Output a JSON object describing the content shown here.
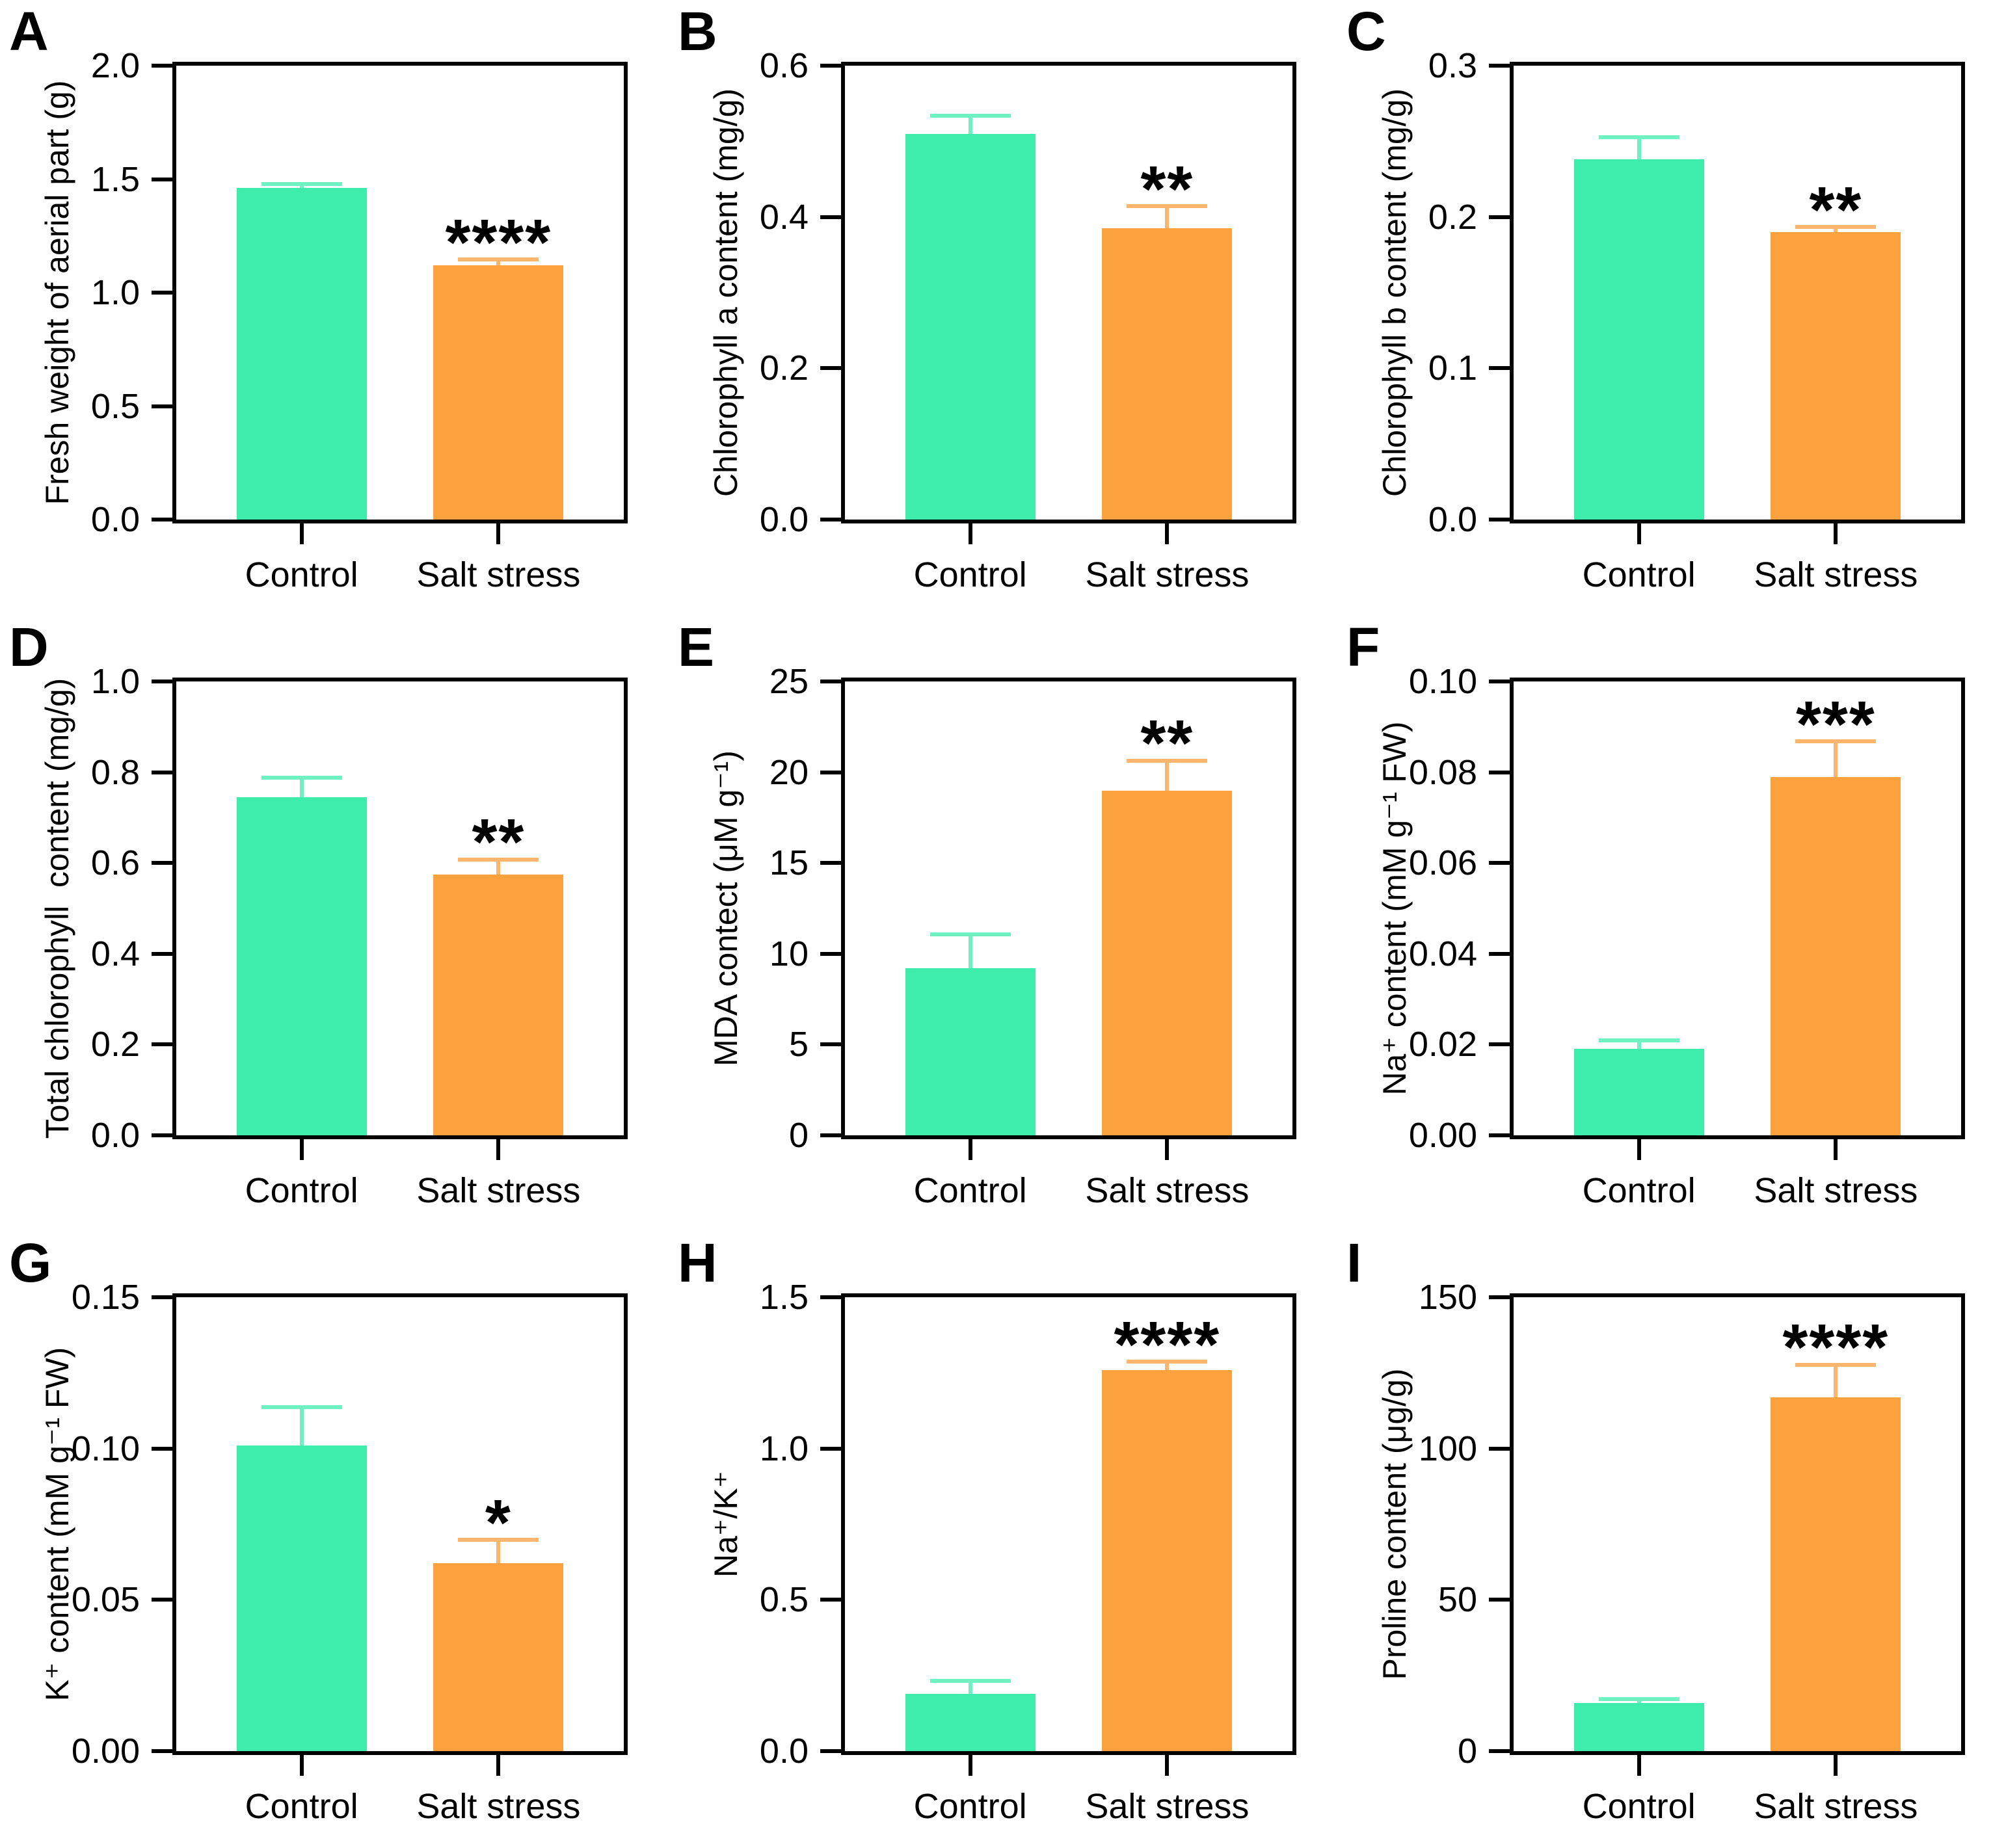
{
  "figure": {
    "description": "Nine-panel bar chart figure comparing Control and Salt stress treatments",
    "background": "#ffffff",
    "axis_color": "#000000",
    "significance_color": "#000000"
  },
  "series_colors": {
    "control": "#3EEDAC",
    "salt": "#FBA23E",
    "control_error": "#6FF1C2",
    "salt_error": "#FCB56C"
  },
  "chart_data": [
    {
      "type": "bar",
      "panel": "A",
      "ylabel": "Fresh weight of aerial part (g)",
      "categories": [
        "Control",
        "Salt stress"
      ],
      "values": [
        1.46,
        1.12
      ],
      "errors": [
        0.02,
        0.03
      ],
      "ylim": [
        0,
        2.0
      ],
      "yticks": [
        "0.0",
        "0.5",
        "1.0",
        "1.5",
        "2.0"
      ],
      "significance": "****",
      "significance_on": "Salt stress",
      "grid": "off",
      "legend": "none"
    },
    {
      "type": "bar",
      "panel": "B",
      "ylabel": "Chlorophyll a content (mg/g)",
      "categories": [
        "Control",
        "Salt stress"
      ],
      "values": [
        0.51,
        0.385
      ],
      "errors": [
        0.025,
        0.03
      ],
      "ylim": [
        0,
        0.6
      ],
      "yticks": [
        "0.0",
        "0.2",
        "0.4",
        "0.6"
      ],
      "significance": "**",
      "significance_on": "Salt stress",
      "grid": "off",
      "legend": "none"
    },
    {
      "type": "bar",
      "panel": "C",
      "ylabel": "Chlorophyll b content (mg/g)",
      "categories": [
        "Control",
        "Salt stress"
      ],
      "values": [
        0.238,
        0.19
      ],
      "errors": [
        0.015,
        0.004
      ],
      "ylim": [
        0,
        0.3
      ],
      "yticks": [
        "0.0",
        "0.1",
        "0.2",
        "0.3"
      ],
      "significance": "**",
      "significance_on": "Salt stress",
      "grid": "off",
      "legend": "none"
    },
    {
      "type": "bar",
      "panel": "D",
      "ylabel": "Total chlorophyll  content (mg/g)",
      "categories": [
        "Control",
        "Salt stress"
      ],
      "values": [
        0.745,
        0.575
      ],
      "errors": [
        0.045,
        0.035
      ],
      "ylim": [
        0,
        1.0
      ],
      "yticks": [
        "0.0",
        "0.2",
        "0.4",
        "0.6",
        "0.8",
        "1.0"
      ],
      "significance": "**",
      "significance_on": "Salt stress",
      "grid": "off",
      "legend": "none"
    },
    {
      "type": "bar",
      "panel": "E",
      "ylabel": "MDA contect (μM g⁻¹)",
      "categories": [
        "Control",
        "Salt stress"
      ],
      "values": [
        9.2,
        19.0
      ],
      "errors": [
        1.9,
        1.7
      ],
      "ylim": [
        0,
        25
      ],
      "yticks": [
        "0",
        "5",
        "10",
        "15",
        "20",
        "25"
      ],
      "significance": "**",
      "significance_on": "Salt stress",
      "grid": "off",
      "legend": "none"
    },
    {
      "type": "bar",
      "panel": "F",
      "ylabel": "Na⁺ content (mM g⁻¹ FW)",
      "categories": [
        "Control",
        "Salt stress"
      ],
      "values": [
        0.019,
        0.079
      ],
      "errors": [
        0.002,
        0.008
      ],
      "ylim": [
        0,
        0.1
      ],
      "yticks": [
        "0.00",
        "0.02",
        "0.04",
        "0.06",
        "0.08",
        "0.10"
      ],
      "significance": "***",
      "significance_on": "Salt stress",
      "grid": "off",
      "legend": "none"
    },
    {
      "type": "bar",
      "panel": "G",
      "ylabel": "K⁺ content (mM g⁻¹ FW)",
      "categories": [
        "Control",
        "Salt stress"
      ],
      "values": [
        0.101,
        0.062
      ],
      "errors": [
        0.013,
        0.008
      ],
      "ylim": [
        0,
        0.15
      ],
      "yticks": [
        "0.00",
        "0.05",
        "0.10",
        "0.15"
      ],
      "significance": "*",
      "significance_on": "Salt stress",
      "grid": "off",
      "legend": "none"
    },
    {
      "type": "bar",
      "panel": "H",
      "ylabel": "Na⁺/K⁺",
      "categories": [
        "Control",
        "Salt stress"
      ],
      "values": [
        0.19,
        1.26
      ],
      "errors": [
        0.045,
        0.03
      ],
      "ylim": [
        0,
        1.5
      ],
      "yticks": [
        "0.0",
        "0.5",
        "1.0",
        "1.5"
      ],
      "significance": "****",
      "significance_on": "Salt stress",
      "grid": "off",
      "legend": "none"
    },
    {
      "type": "bar",
      "panel": "I",
      "ylabel": "Proline content (μg/g)",
      "categories": [
        "Control",
        "Salt stress"
      ],
      "values": [
        16,
        117
      ],
      "errors": [
        1.5,
        11
      ],
      "ylim": [
        0,
        150
      ],
      "yticks": [
        "0",
        "50",
        "100",
        "150"
      ],
      "significance": "****",
      "significance_on": "Salt stress",
      "grid": "off",
      "legend": "none"
    }
  ]
}
